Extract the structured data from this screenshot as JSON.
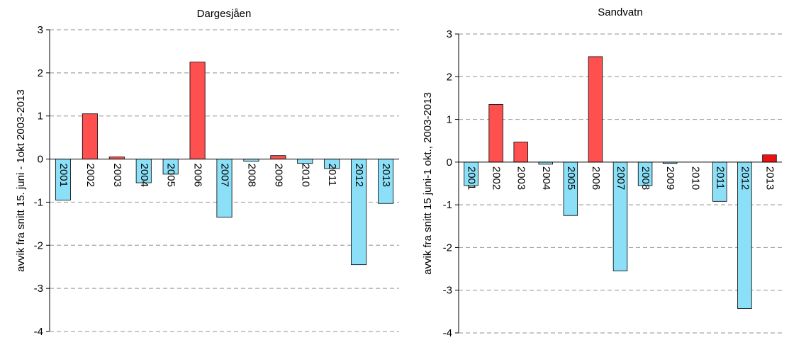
{
  "colors": {
    "positive": "#ff5050",
    "negative": "#8be0f8",
    "positive_2013_right": "#ee1111"
  },
  "chart_data": [
    {
      "type": "bar",
      "title": "Dargesjåen",
      "ylabel": "avvik fra snitt 15. juni - 1okt  2003-2013",
      "xlabel": "",
      "ylim": [
        -4,
        3
      ],
      "yticks": [
        -4,
        -3,
        -2,
        -1,
        0,
        1,
        2,
        3
      ],
      "grid": true,
      "categories": [
        "2001",
        "2002",
        "2003",
        "2004",
        "2005",
        "2006",
        "2007",
        "2008",
        "2009",
        "2010",
        "2011",
        "2012",
        "2013"
      ],
      "values": [
        -0.95,
        1.05,
        0.05,
        -0.55,
        -0.35,
        2.25,
        -1.35,
        -0.05,
        0.08,
        -0.1,
        -0.22,
        -2.45,
        -1.03
      ]
    },
    {
      "type": "bar",
      "title": "Sandvatn",
      "ylabel": "avvik fra snitt 15 juni-1 okt., 2003-2013",
      "xlabel": "",
      "ylim": [
        -4,
        3
      ],
      "yticks": [
        -4,
        -3,
        -2,
        -1,
        0,
        1,
        2,
        3
      ],
      "grid": true,
      "categories": [
        "2001",
        "2002",
        "2003",
        "2004",
        "2005",
        "2006",
        "2007",
        "2008",
        "2009",
        "2010",
        "2011",
        "2012",
        "2013"
      ],
      "values": [
        -0.55,
        1.35,
        0.47,
        -0.05,
        -1.25,
        2.47,
        -2.55,
        -0.55,
        -0.03,
        0.0,
        -0.92,
        -3.43,
        0.17
      ]
    }
  ]
}
